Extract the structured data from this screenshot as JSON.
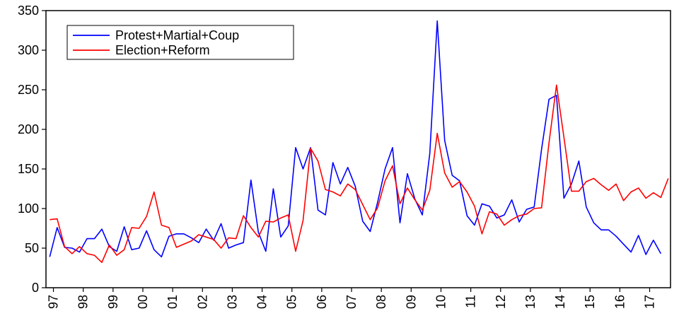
{
  "chart_data": {
    "type": "line",
    "title": "",
    "xlabel": "",
    "ylabel": "",
    "ylim": [
      0,
      350
    ],
    "yticks": [
      0,
      50,
      100,
      150,
      200,
      250,
      300,
      350
    ],
    "xlim": [
      1997.0,
      2017.95
    ],
    "xtick_positions": [
      1997.25,
      1998.25,
      1999.25,
      2000.25,
      2001.25,
      2002.25,
      2003.25,
      2004.25,
      2005.25,
      2006.25,
      2007.25,
      2008.25,
      2009.25,
      2010.25,
      2011.25,
      2012.25,
      2013.25,
      2014.25,
      2015.25,
      2016.25,
      2017.25
    ],
    "xtick_labels": [
      "97",
      "98",
      "99",
      "00",
      "01",
      "02",
      "03",
      "04",
      "05",
      "06",
      "07",
      "08",
      "09",
      "10",
      "11",
      "12",
      "13",
      "14",
      "15",
      "16",
      "17"
    ],
    "grid": false,
    "legend_position": "top-left",
    "x_start": "1997Q1",
    "frequency": "quarterly",
    "series": [
      {
        "name": "Protest+Martial+Coup",
        "color": "#0000ff",
        "values": [
          39,
          76,
          51,
          50,
          45,
          62,
          62,
          74,
          52,
          46,
          77,
          48,
          50,
          72,
          48,
          39,
          65,
          68,
          68,
          63,
          57,
          74,
          60,
          81,
          50,
          54,
          57,
          136,
          70,
          46,
          125,
          64,
          78,
          177,
          150,
          177,
          98,
          92,
          158,
          131,
          152,
          128,
          84,
          71,
          108,
          150,
          177,
          82,
          144,
          112,
          92,
          170,
          337,
          186,
          142,
          135,
          91,
          79,
          106,
          103,
          88,
          92,
          111,
          83,
          99,
          102,
          175,
          238,
          243,
          113,
          131,
          160,
          102,
          82,
          73,
          73,
          65,
          55,
          45,
          66,
          42,
          60,
          43
        ]
      },
      {
        "name": "Election+Reform",
        "color": "#ff0000",
        "values": [
          86,
          87,
          52,
          43,
          52,
          43,
          41,
          32,
          54,
          41,
          48,
          76,
          75,
          90,
          121,
          79,
          76,
          51,
          55,
          59,
          67,
          64,
          61,
          50,
          63,
          62,
          91,
          76,
          64,
          84,
          83,
          88,
          92,
          46,
          85,
          176,
          160,
          124,
          121,
          116,
          131,
          124,
          105,
          86,
          101,
          135,
          154,
          106,
          126,
          111,
          98,
          123,
          195,
          145,
          127,
          134,
          121,
          103,
          68,
          96,
          93,
          79,
          86,
          91,
          93,
          100,
          101,
          183,
          256,
          190,
          122,
          122,
          134,
          138,
          130,
          123,
          131,
          110,
          121,
          126,
          113,
          120,
          114,
          138
        ]
      }
    ]
  }
}
